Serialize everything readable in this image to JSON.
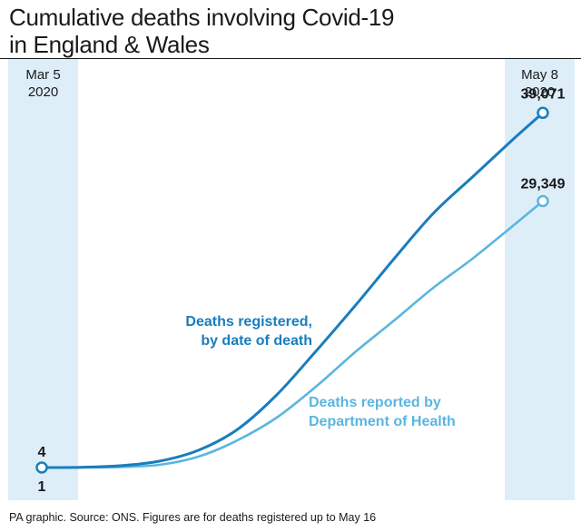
{
  "title": [
    "Cumulative deaths involving Covid-19",
    "in England & Wales"
  ],
  "start_label": [
    "Mar 5",
    "2020"
  ],
  "end_label": [
    "May 8",
    "2020"
  ],
  "footer": "PA graphic. Source: ONS. Figures are for deaths registered up to May 16",
  "colors": {
    "dark": "#1a7dbd",
    "light": "#5ab6e0",
    "band": "#ddeef9"
  },
  "chart_data": {
    "type": "line",
    "title": "Cumulative deaths involving Covid-19 in England & Wales",
    "x_start": "2020-03-05",
    "x_end": "2020-05-08",
    "ylim": [
      0,
      45000
    ],
    "series": [
      {
        "name": "Deaths registered, by date of death",
        "label_lines": [
          "Deaths registered,",
          "by date of death"
        ],
        "color": "#1a7dbd",
        "start_value": 4,
        "start_label": "4",
        "end_value": 39071,
        "end_label": "39,071",
        "x": [
          "2020-03-05",
          "2020-03-10",
          "2020-03-15",
          "2020-03-20",
          "2020-03-25",
          "2020-03-30",
          "2020-04-04",
          "2020-04-09",
          "2020-04-14",
          "2020-04-19",
          "2020-04-24",
          "2020-04-29",
          "2020-05-04",
          "2020-05-08"
        ],
        "values": [
          4,
          30,
          200,
          700,
          1900,
          4200,
          8000,
          12800,
          17800,
          23000,
          28000,
          32000,
          36000,
          39071
        ]
      },
      {
        "name": "Deaths reported by Department of Health",
        "label_lines": [
          "Deaths reported by",
          "Department of Health"
        ],
        "color": "#5ab6e0",
        "start_value": 1,
        "start_label": "1",
        "end_value": 29349,
        "end_label": "29,349",
        "x": [
          "2020-03-05",
          "2020-03-10",
          "2020-03-15",
          "2020-03-20",
          "2020-03-25",
          "2020-03-30",
          "2020-04-04",
          "2020-04-09",
          "2020-04-14",
          "2020-04-19",
          "2020-04-24",
          "2020-04-29",
          "2020-05-04",
          "2020-05-08"
        ],
        "values": [
          1,
          10,
          60,
          300,
          1200,
          3000,
          5500,
          8900,
          12700,
          16200,
          19800,
          23000,
          26500,
          29349
        ]
      }
    ]
  }
}
